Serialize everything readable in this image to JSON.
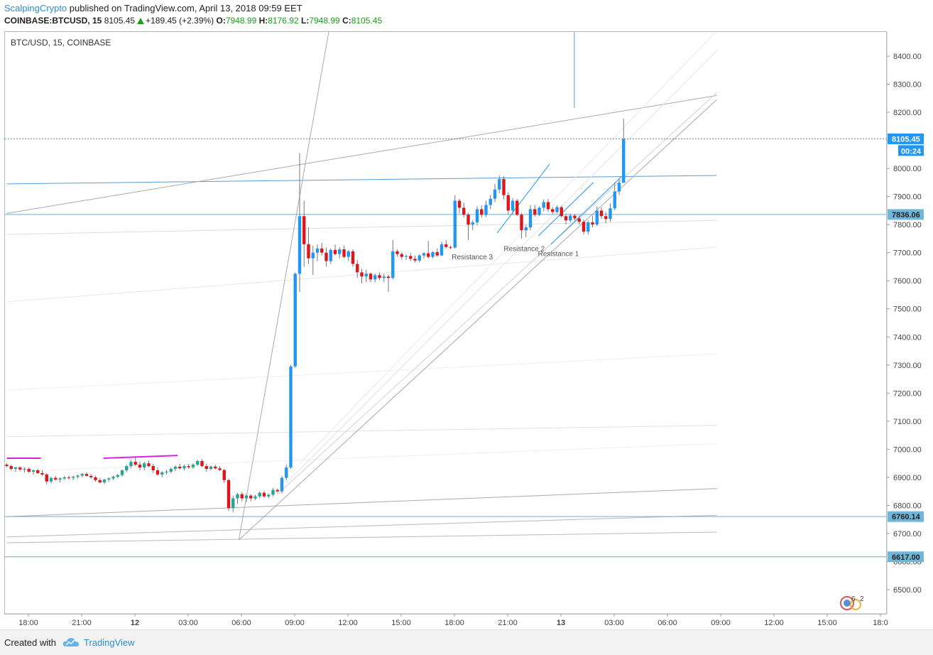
{
  "header": {
    "author": "ScalpingCrypto",
    "published_text": "published on TradingView.com, April 13, 2018 09:59 EET",
    "symbol_interval": "COINBASE:BTCUSD, 15",
    "last_price": "8105.45",
    "change": "+189.45 (+2.39%)",
    "open_label": "O:",
    "open_value": "7948.99",
    "high_label": "H:",
    "high_value": "8176.92",
    "low_label": "L:",
    "low_value": "7948.99",
    "close_label": "C:",
    "close_value": "8105.45"
  },
  "chart_data": {
    "type": "candlestick",
    "title": "BTC/USD, 15, COINBASE",
    "ylim": [
      6400,
      8490
    ],
    "y_ticks": [
      6500,
      6600,
      6700,
      6800,
      6900,
      7000,
      7100,
      7200,
      7300,
      7400,
      7500,
      7600,
      7700,
      7800,
      7900,
      8000,
      8100,
      8200,
      8300,
      8400
    ],
    "x_ticks": [
      {
        "label": "18:00",
        "bold": false
      },
      {
        "label": "21:00",
        "bold": false
      },
      {
        "label": "12",
        "bold": true
      },
      {
        "label": "03:00",
        "bold": false
      },
      {
        "label": "06:00",
        "bold": false
      },
      {
        "label": "09:00",
        "bold": false
      },
      {
        "label": "12:00",
        "bold": false
      },
      {
        "label": "15:00",
        "bold": false
      },
      {
        "label": "18:00",
        "bold": false
      },
      {
        "label": "21:00",
        "bold": false
      },
      {
        "label": "13",
        "bold": true
      },
      {
        "label": "03:00",
        "bold": false
      },
      {
        "label": "06:00",
        "bold": false
      },
      {
        "label": "09:00",
        "bold": false
      },
      {
        "label": "12:00",
        "bold": false
      },
      {
        "label": "15:00",
        "bold": false
      },
      {
        "label": "18:0",
        "bold": false
      }
    ],
    "price_labels": [
      {
        "value": 8105.45,
        "text": "8105.45",
        "sub": "00:24",
        "style": "last"
      },
      {
        "value": 7836.06,
        "text": "7836.06",
        "style": "level"
      },
      {
        "value": 6760.14,
        "text": "6760.14",
        "style": "level"
      },
      {
        "value": 6617.0,
        "text": "6617.00",
        "style": "level"
      }
    ],
    "annotations": [
      {
        "text": "Resistance 3",
        "time": 104.9,
        "price": 7677
      },
      {
        "text": "Resistance 2",
        "time": 116.6,
        "price": 7705
      },
      {
        "text": "Resistance 1",
        "time": 124.3,
        "price": 7688
      }
    ],
    "candles": [
      {
        "o": 6945,
        "h": 6950,
        "l": 6935,
        "c": 6940
      },
      {
        "o": 6940,
        "h": 6945,
        "l": 6925,
        "c": 6930
      },
      {
        "o": 6930,
        "h": 6938,
        "l": 6920,
        "c": 6935
      },
      {
        "o": 6935,
        "h": 6940,
        "l": 6922,
        "c": 6928
      },
      {
        "o": 6928,
        "h": 6935,
        "l": 6918,
        "c": 6930
      },
      {
        "o": 6930,
        "h": 6936,
        "l": 6915,
        "c": 6920
      },
      {
        "o": 6920,
        "h": 6928,
        "l": 6910,
        "c": 6925
      },
      {
        "o": 6925,
        "h": 6930,
        "l": 6912,
        "c": 6915
      },
      {
        "o": 6915,
        "h": 6925,
        "l": 6905,
        "c": 6910
      },
      {
        "o": 6910,
        "h": 6915,
        "l": 6875,
        "c": 6885
      },
      {
        "o": 6885,
        "h": 6902,
        "l": 6878,
        "c": 6898
      },
      {
        "o": 6898,
        "h": 6905,
        "l": 6888,
        "c": 6892
      },
      {
        "o": 6892,
        "h": 6900,
        "l": 6882,
        "c": 6896
      },
      {
        "o": 6896,
        "h": 6905,
        "l": 6890,
        "c": 6900
      },
      {
        "o": 6900,
        "h": 6906,
        "l": 6892,
        "c": 6898
      },
      {
        "o": 6898,
        "h": 6906,
        "l": 6890,
        "c": 6902
      },
      {
        "o": 6902,
        "h": 6910,
        "l": 6896,
        "c": 6906
      },
      {
        "o": 6906,
        "h": 6915,
        "l": 6900,
        "c": 6912
      },
      {
        "o": 6912,
        "h": 6918,
        "l": 6902,
        "c": 6905
      },
      {
        "o": 6905,
        "h": 6912,
        "l": 6895,
        "c": 6900
      },
      {
        "o": 6900,
        "h": 6906,
        "l": 6885,
        "c": 6890
      },
      {
        "o": 6890,
        "h": 6898,
        "l": 6878,
        "c": 6882
      },
      {
        "o": 6882,
        "h": 6895,
        "l": 6876,
        "c": 6892
      },
      {
        "o": 6892,
        "h": 6900,
        "l": 6885,
        "c": 6896
      },
      {
        "o": 6896,
        "h": 6906,
        "l": 6890,
        "c": 6902
      },
      {
        "o": 6902,
        "h": 6912,
        "l": 6896,
        "c": 6908
      },
      {
        "o": 6908,
        "h": 6928,
        "l": 6902,
        "c": 6925
      },
      {
        "o": 6925,
        "h": 6945,
        "l": 6918,
        "c": 6940
      },
      {
        "o": 6940,
        "h": 6962,
        "l": 6932,
        "c": 6955
      },
      {
        "o": 6955,
        "h": 6975,
        "l": 6940,
        "c": 6945
      },
      {
        "o": 6945,
        "h": 6955,
        "l": 6925,
        "c": 6935
      },
      {
        "o": 6935,
        "h": 6955,
        "l": 6925,
        "c": 6950
      },
      {
        "o": 6950,
        "h": 6960,
        "l": 6935,
        "c": 6940
      },
      {
        "o": 6940,
        "h": 6948,
        "l": 6915,
        "c": 6925
      },
      {
        "o": 6925,
        "h": 6935,
        "l": 6905,
        "c": 6910
      },
      {
        "o": 6910,
        "h": 6922,
        "l": 6900,
        "c": 6918
      },
      {
        "o": 6918,
        "h": 6928,
        "l": 6910,
        "c": 6920
      },
      {
        "o": 6920,
        "h": 6935,
        "l": 6915,
        "c": 6930
      },
      {
        "o": 6930,
        "h": 6942,
        "l": 6922,
        "c": 6938
      },
      {
        "o": 6938,
        "h": 6948,
        "l": 6928,
        "c": 6932
      },
      {
        "o": 6932,
        "h": 6945,
        "l": 6925,
        "c": 6940
      },
      {
        "o": 6940,
        "h": 6948,
        "l": 6930,
        "c": 6936
      },
      {
        "o": 6936,
        "h": 6950,
        "l": 6930,
        "c": 6945
      },
      {
        "o": 6945,
        "h": 6962,
        "l": 6940,
        "c": 6958
      },
      {
        "o": 6958,
        "h": 6965,
        "l": 6935,
        "c": 6940
      },
      {
        "o": 6940,
        "h": 6948,
        "l": 6920,
        "c": 6930
      },
      {
        "o": 6930,
        "h": 6942,
        "l": 6925,
        "c": 6938
      },
      {
        "o": 6938,
        "h": 6945,
        "l": 6928,
        "c": 6932
      },
      {
        "o": 6932,
        "h": 6940,
        "l": 6922,
        "c": 6926
      },
      {
        "o": 6926,
        "h": 6930,
        "l": 6880,
        "c": 6890
      },
      {
        "o": 6890,
        "h": 6895,
        "l": 6780,
        "c": 6790
      },
      {
        "o": 6790,
        "h": 6835,
        "l": 6775,
        "c": 6825
      },
      {
        "o": 6825,
        "h": 6845,
        "l": 6805,
        "c": 6840
      },
      {
        "o": 6840,
        "h": 6848,
        "l": 6815,
        "c": 6825
      },
      {
        "o": 6825,
        "h": 6840,
        "l": 6812,
        "c": 6835
      },
      {
        "o": 6835,
        "h": 6840,
        "l": 6815,
        "c": 6825
      },
      {
        "o": 6825,
        "h": 6838,
        "l": 6818,
        "c": 6832
      },
      {
        "o": 6832,
        "h": 6850,
        "l": 6825,
        "c": 6845
      },
      {
        "o": 6845,
        "h": 6852,
        "l": 6828,
        "c": 6832
      },
      {
        "o": 6832,
        "h": 6842,
        "l": 6825,
        "c": 6838
      },
      {
        "o": 6838,
        "h": 6862,
        "l": 6832,
        "c": 6855
      },
      {
        "o": 6855,
        "h": 6860,
        "l": 6845,
        "c": 6850
      },
      {
        "o": 6850,
        "h": 6905,
        "l": 6842,
        "c": 6898
      },
      {
        "o": 6898,
        "h": 6945,
        "l": 6890,
        "c": 6935
      },
      {
        "o": 6935,
        "h": 7300,
        "l": 6930,
        "c": 7295
      },
      {
        "o": 7295,
        "h": 7630,
        "l": 7290,
        "c": 7625
      },
      {
        "o": 7625,
        "h": 8055,
        "l": 7560,
        "c": 7830
      },
      {
        "o": 7830,
        "h": 7885,
        "l": 7650,
        "c": 7730
      },
      {
        "o": 7730,
        "h": 7790,
        "l": 7660,
        "c": 7680
      },
      {
        "o": 7680,
        "h": 7725,
        "l": 7620,
        "c": 7700
      },
      {
        "o": 7700,
        "h": 7730,
        "l": 7670,
        "c": 7715
      },
      {
        "o": 7715,
        "h": 7735,
        "l": 7690,
        "c": 7700
      },
      {
        "o": 7700,
        "h": 7718,
        "l": 7650,
        "c": 7670
      },
      {
        "o": 7670,
        "h": 7715,
        "l": 7660,
        "c": 7710
      },
      {
        "o": 7710,
        "h": 7730,
        "l": 7690,
        "c": 7695
      },
      {
        "o": 7695,
        "h": 7720,
        "l": 7680,
        "c": 7712
      },
      {
        "o": 7712,
        "h": 7725,
        "l": 7680,
        "c": 7685
      },
      {
        "o": 7685,
        "h": 7710,
        "l": 7670,
        "c": 7705
      },
      {
        "o": 7705,
        "h": 7712,
        "l": 7650,
        "c": 7660
      },
      {
        "o": 7660,
        "h": 7675,
        "l": 7610,
        "c": 7630
      },
      {
        "o": 7630,
        "h": 7642,
        "l": 7590,
        "c": 7615
      },
      {
        "o": 7615,
        "h": 7640,
        "l": 7595,
        "c": 7625
      },
      {
        "o": 7625,
        "h": 7630,
        "l": 7595,
        "c": 7605
      },
      {
        "o": 7605,
        "h": 7625,
        "l": 7595,
        "c": 7620
      },
      {
        "o": 7620,
        "h": 7630,
        "l": 7602,
        "c": 7610
      },
      {
        "o": 7610,
        "h": 7625,
        "l": 7595,
        "c": 7615
      },
      {
        "o": 7615,
        "h": 7622,
        "l": 7560,
        "c": 7610
      },
      {
        "o": 7610,
        "h": 7745,
        "l": 7605,
        "c": 7705
      },
      {
        "o": 7705,
        "h": 7712,
        "l": 7685,
        "c": 7695
      },
      {
        "o": 7695,
        "h": 7702,
        "l": 7675,
        "c": 7685
      },
      {
        "o": 7685,
        "h": 7695,
        "l": 7675,
        "c": 7688
      },
      {
        "o": 7688,
        "h": 7700,
        "l": 7670,
        "c": 7678
      },
      {
        "o": 7678,
        "h": 7690,
        "l": 7665,
        "c": 7672
      },
      {
        "o": 7672,
        "h": 7695,
        "l": 7665,
        "c": 7690
      },
      {
        "o": 7690,
        "h": 7702,
        "l": 7680,
        "c": 7698
      },
      {
        "o": 7698,
        "h": 7742,
        "l": 7680,
        "c": 7685
      },
      {
        "o": 7685,
        "h": 7705,
        "l": 7680,
        "c": 7702
      },
      {
        "o": 7702,
        "h": 7715,
        "l": 7685,
        "c": 7690
      },
      {
        "o": 7690,
        "h": 7740,
        "l": 7688,
        "c": 7730
      },
      {
        "o": 7730,
        "h": 7745,
        "l": 7715,
        "c": 7720
      },
      {
        "o": 7720,
        "h": 7725,
        "l": 7712,
        "c": 7718
      },
      {
        "o": 7718,
        "h": 7905,
        "l": 7715,
        "c": 7885
      },
      {
        "o": 7885,
        "h": 7892,
        "l": 7840,
        "c": 7860
      },
      {
        "o": 7860,
        "h": 7878,
        "l": 7825,
        "c": 7835
      },
      {
        "o": 7835,
        "h": 7842,
        "l": 7745,
        "c": 7800
      },
      {
        "o": 7800,
        "h": 7815,
        "l": 7780,
        "c": 7808
      },
      {
        "o": 7808,
        "h": 7865,
        "l": 7798,
        "c": 7855
      },
      {
        "o": 7855,
        "h": 7868,
        "l": 7825,
        "c": 7835
      },
      {
        "o": 7835,
        "h": 7885,
        "l": 7828,
        "c": 7870
      },
      {
        "o": 7870,
        "h": 7905,
        "l": 7855,
        "c": 7892
      },
      {
        "o": 7892,
        "h": 7945,
        "l": 7880,
        "c": 7925
      },
      {
        "o": 7925,
        "h": 7975,
        "l": 7912,
        "c": 7962
      },
      {
        "o": 7962,
        "h": 7972,
        "l": 7890,
        "c": 7905
      },
      {
        "o": 7905,
        "h": 7915,
        "l": 7835,
        "c": 7850
      },
      {
        "o": 7850,
        "h": 7895,
        "l": 7835,
        "c": 7885
      },
      {
        "o": 7885,
        "h": 7892,
        "l": 7830,
        "c": 7835
      },
      {
        "o": 7835,
        "h": 7842,
        "l": 7750,
        "c": 7780
      },
      {
        "o": 7780,
        "h": 7800,
        "l": 7755,
        "c": 7790
      },
      {
        "o": 7790,
        "h": 7870,
        "l": 7780,
        "c": 7855
      },
      {
        "o": 7855,
        "h": 7870,
        "l": 7828,
        "c": 7835
      },
      {
        "o": 7835,
        "h": 7865,
        "l": 7830,
        "c": 7860
      },
      {
        "o": 7860,
        "h": 7890,
        "l": 7848,
        "c": 7880
      },
      {
        "o": 7880,
        "h": 7892,
        "l": 7845,
        "c": 7855
      },
      {
        "o": 7855,
        "h": 7862,
        "l": 7838,
        "c": 7845
      },
      {
        "o": 7845,
        "h": 7868,
        "l": 7840,
        "c": 7862
      },
      {
        "o": 7862,
        "h": 7868,
        "l": 7825,
        "c": 7830
      },
      {
        "o": 7830,
        "h": 7838,
        "l": 7800,
        "c": 7815
      },
      {
        "o": 7815,
        "h": 7840,
        "l": 7808,
        "c": 7832
      },
      {
        "o": 7832,
        "h": 7838,
        "l": 7815,
        "c": 7822
      },
      {
        "o": 7822,
        "h": 7832,
        "l": 7800,
        "c": 7810
      },
      {
        "o": 7810,
        "h": 7818,
        "l": 7765,
        "c": 7775
      },
      {
        "o": 7775,
        "h": 7815,
        "l": 7765,
        "c": 7808
      },
      {
        "o": 7808,
        "h": 7832,
        "l": 7790,
        "c": 7800
      },
      {
        "o": 7800,
        "h": 7865,
        "l": 7795,
        "c": 7850
      },
      {
        "o": 7850,
        "h": 7862,
        "l": 7820,
        "c": 7830
      },
      {
        "o": 7830,
        "h": 7845,
        "l": 7805,
        "c": 7820
      },
      {
        "o": 7820,
        "h": 7875,
        "l": 7810,
        "c": 7858
      },
      {
        "o": 7858,
        "h": 7950,
        "l": 7850,
        "c": 7918
      },
      {
        "o": 7918,
        "h": 7965,
        "l": 7905,
        "c": 7949
      },
      {
        "o": 7949,
        "h": 8177,
        "l": 7949,
        "c": 8105
      }
    ],
    "magenta_segments": [
      {
        "t1": 0,
        "t2": 7.7,
        "p": 6968
      },
      {
        "t1": 21.8,
        "t2": 38.5,
        "p": 6968,
        "p2": 6978
      }
    ],
    "horizontal_levels": [
      {
        "price": 8105.45,
        "color": "#2196f3",
        "style": "dotted"
      },
      {
        "price": 7836.06,
        "color": "#6aaed6",
        "style": "solid"
      },
      {
        "price": 6760.14,
        "color": "#6aaed6",
        "style": "solid"
      },
      {
        "price": 6617.0,
        "color": "#6aaed6",
        "style": "solid"
      }
    ],
    "trend_lines": [
      {
        "t1": 0,
        "p1": 7945,
        "t2": 160,
        "p2": 7975,
        "color": "#5b9bd5",
        "w": 1
      },
      {
        "t1": 0,
        "p1": 7840,
        "t2": 160,
        "p2": 8260,
        "color": "#aaaaaa",
        "w": 1
      },
      {
        "t1": 0,
        "p1": 7765,
        "t2": 160,
        "p2": 7815,
        "color": "#dddddd",
        "w": 1
      },
      {
        "t1": 0,
        "p1": 7525,
        "t2": 160,
        "p2": 7720,
        "color": "#e6e6e6",
        "w": 1
      },
      {
        "t1": 0,
        "p1": 7210,
        "t2": 160,
        "p2": 7340,
        "color": "#eeeeee",
        "w": 1
      },
      {
        "t1": 0,
        "p1": 7045,
        "t2": 160,
        "p2": 7085,
        "color": "#e0e0e0",
        "w": 1
      },
      {
        "t1": 0,
        "p1": 6920,
        "t2": 160,
        "p2": 7020,
        "color": "#eeeeee",
        "w": 1
      },
      {
        "t1": 0,
        "p1": 6760,
        "t2": 160,
        "p2": 6860,
        "color": "#aaaaaa",
        "w": 1
      },
      {
        "t1": 0,
        "p1": 6688,
        "t2": 160,
        "p2": 6765,
        "color": "#bbbbbb",
        "w": 1
      },
      {
        "t1": 0,
        "p1": 6667,
        "t2": 160,
        "p2": 6705,
        "color": "#bbbbbb",
        "w": 1
      },
      {
        "t1": 52.3,
        "p1": 6677,
        "t2": 72.6,
        "p2": 8490,
        "color": "#aaaaaa",
        "w": 1
      },
      {
        "t1": 52.3,
        "p1": 6677,
        "t2": 160,
        "p2": 8245,
        "color": "#a8a8a8",
        "w": 1
      },
      {
        "t1": 61,
        "p1": 6840,
        "t2": 160,
        "p2": 8270,
        "color": "#d0d0d0",
        "w": 1
      },
      {
        "t1": 63,
        "p1": 6880,
        "t2": 160,
        "p2": 8420,
        "color": "#e2e2e2",
        "w": 1
      },
      {
        "t1": 66,
        "p1": 6950,
        "t2": 160,
        "p2": 8490,
        "color": "#e8e8e8",
        "w": 1
      },
      {
        "t1": 110.5,
        "p1": 7770,
        "t2": 122.3,
        "p2": 8015,
        "color": "#2196f3",
        "w": 1
      },
      {
        "t1": 119.8,
        "p1": 7760,
        "t2": 132.2,
        "p2": 7950,
        "color": "#2196f3",
        "w": 1
      },
      {
        "t1": 122.6,
        "p1": 7730,
        "t2": 138.5,
        "p2": 7970,
        "color": "#2196f3",
        "w": 1
      },
      {
        "t1": 127.9,
        "p1": 8215,
        "t2": 127.9,
        "p2": 8490,
        "color": "#5b9bd5",
        "w": 1
      }
    ]
  }
}
